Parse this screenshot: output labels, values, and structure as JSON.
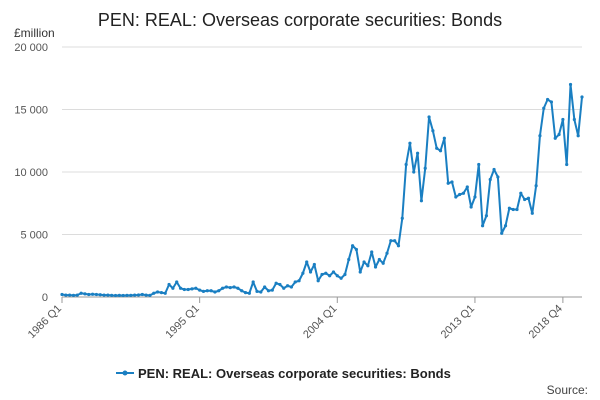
{
  "chart_data": {
    "type": "line",
    "title": "PEN: REAL: Overseas corporate securities: Bonds",
    "unit_label": "£million",
    "ylim": [
      0,
      20000
    ],
    "yticks": [
      0,
      5000,
      10000,
      15000,
      20000
    ],
    "ytick_labels": [
      "0",
      "5 000",
      "10 000",
      "15 000",
      "20 000"
    ],
    "xticks": [
      {
        "label": "1986 Q1",
        "index": 0
      },
      {
        "label": "1995 Q1",
        "index": 36
      },
      {
        "label": "2004 Q1",
        "index": 72
      },
      {
        "label": "2013 Q1",
        "index": 108
      },
      {
        "label": "2018 Q4",
        "index": 131
      }
    ],
    "grid": "horizontal",
    "legend": "bottom-center",
    "source_label": "Source:",
    "color": "#1a7fc2",
    "series": [
      {
        "name": "PEN: REAL: Overseas corporate securities: Bonds",
        "start": "1986 Q1",
        "values": [
          200,
          150,
          150,
          130,
          150,
          300,
          250,
          200,
          220,
          200,
          180,
          150,
          150,
          130,
          120,
          130,
          120,
          130,
          130,
          150,
          160,
          200,
          150,
          130,
          300,
          400,
          350,
          300,
          1000,
          700,
          1200,
          700,
          600,
          600,
          650,
          700,
          550,
          450,
          500,
          500,
          400,
          500,
          700,
          800,
          750,
          800,
          700,
          500,
          350,
          300,
          1200,
          450,
          400,
          800,
          500,
          550,
          1100,
          1000,
          700,
          900,
          800,
          1200,
          1300,
          1900,
          2800,
          2000,
          2600,
          1300,
          1800,
          1900,
          1700,
          2000,
          1700,
          1500,
          1800,
          3000,
          4100,
          3800,
          2000,
          2800,
          2500,
          3600,
          2400,
          3000,
          2700,
          3500,
          4500,
          4500,
          4100,
          6300,
          10600,
          12300,
          10000,
          11500,
          7700,
          10300,
          14400,
          13300,
          11900,
          11700,
          12700,
          9100,
          9200,
          8000,
          8200,
          8300,
          8800,
          7200,
          8000,
          10600,
          5700,
          6500,
          9400,
          10200,
          9600,
          5100,
          5700,
          7100,
          7000,
          7000,
          8300,
          7800,
          7900,
          6700,
          8900,
          12900,
          15100,
          15800,
          15600,
          12700,
          13000,
          14200,
          10600,
          17000,
          14200,
          12900,
          16000
        ]
      }
    ]
  }
}
